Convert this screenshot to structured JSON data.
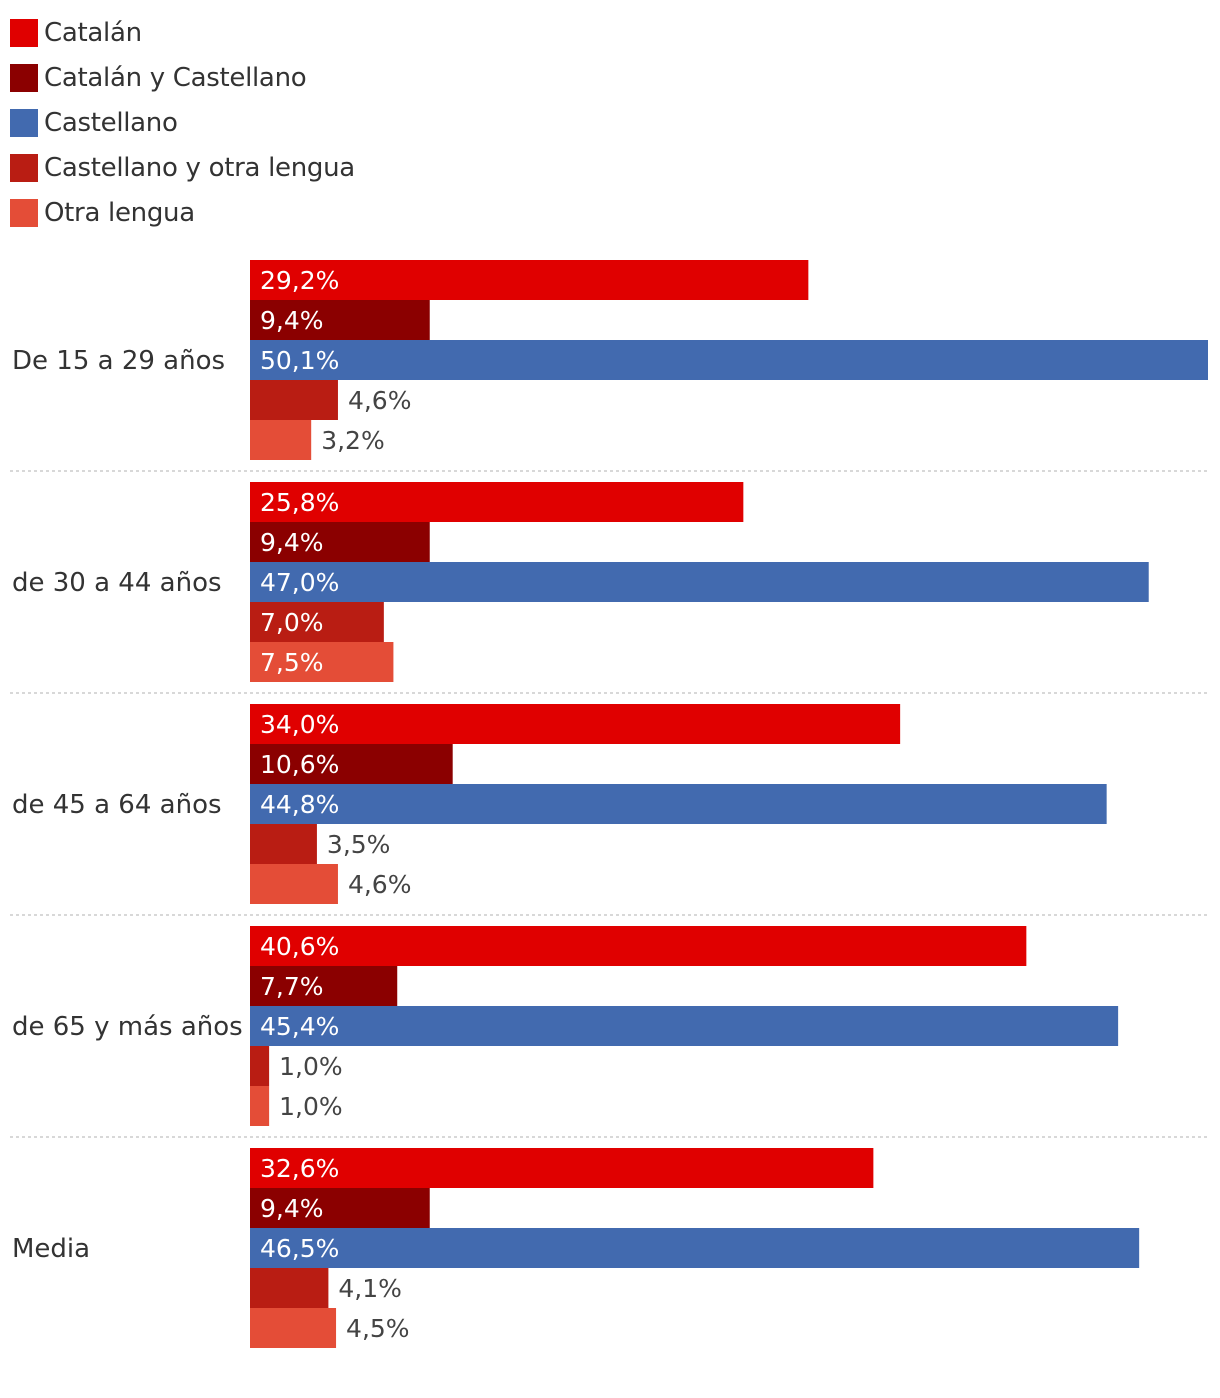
{
  "chart_data": {
    "type": "bar",
    "orientation": "horizontal",
    "categories": [
      "De 15 a 29 años",
      "de 30 a 44 años",
      "de 45 a 64 años",
      "de 65 y más años",
      "Media"
    ],
    "series": [
      {
        "name": "Catalán",
        "color": "#e00000",
        "values": [
          29.2,
          25.8,
          34.0,
          40.6,
          32.6
        ],
        "labels": [
          "29,2%",
          "25,8%",
          "34,0%",
          "40,6%",
          "32,6%"
        ]
      },
      {
        "name": "Catalán y Castellano",
        "color": "#8b0000",
        "values": [
          9.4,
          9.4,
          10.6,
          7.7,
          9.4
        ],
        "labels": [
          "9,4%",
          "9,4%",
          "10,6%",
          "7,7%",
          "9,4%"
        ]
      },
      {
        "name": "Castellano",
        "color": "#426aaf",
        "values": [
          50.1,
          47.0,
          44.8,
          45.4,
          46.5
        ],
        "labels": [
          "50,1%",
          "47,0%",
          "44,8%",
          "45,4%",
          "46,5%"
        ]
      },
      {
        "name": "Castellano y otra lengua",
        "color": "#b91d13",
        "values": [
          4.6,
          7.0,
          3.5,
          1.0,
          4.1
        ],
        "labels": [
          "4,6%",
          "7,0%",
          "3,5%",
          "1,0%",
          "4,1%"
        ]
      },
      {
        "name": "Otra lengua",
        "color": "#e44d37",
        "values": [
          3.2,
          7.5,
          4.6,
          1.0,
          4.5
        ],
        "labels": [
          "3,2%",
          "7,5%",
          "4,6%",
          "1,0%",
          "4,5%"
        ]
      }
    ],
    "xlim": [
      0,
      50.1
    ],
    "legend_position": "top-left",
    "grid": false
  }
}
